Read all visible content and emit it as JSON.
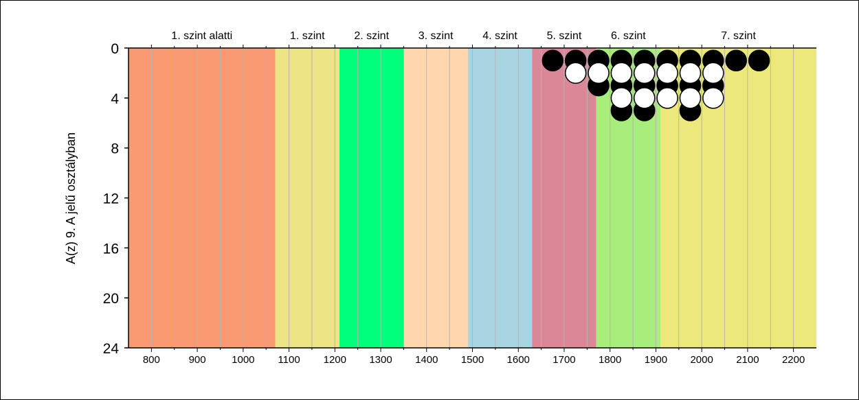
{
  "chart_data": {
    "type": "scatter",
    "ylabel": "A(z) 9. A jelű osztályban",
    "xlabel": "",
    "xlim": [
      750,
      2250
    ],
    "ylim": [
      0,
      24
    ],
    "y_inverted": true,
    "x_ticks": [
      800,
      900,
      1000,
      1100,
      1200,
      1300,
      1400,
      1500,
      1600,
      1700,
      1800,
      1900,
      2000,
      2100,
      2200
    ],
    "y_ticks": [
      0,
      4,
      8,
      12,
      16,
      20,
      24
    ],
    "x_tick_labels": [
      "800",
      "900",
      "1000",
      "1100",
      "1200",
      "1300",
      "1400",
      "1500",
      "1600",
      "1700",
      "1800",
      "1900",
      "2000",
      "2100",
      "2200"
    ],
    "y_tick_labels": [
      "0",
      "4",
      "8",
      "12",
      "16",
      "20",
      "24"
    ],
    "vertical_grid": true,
    "bands": [
      {
        "label": "1. szint alatti",
        "from": 750,
        "to": 1070,
        "color": "#fa9a72"
      },
      {
        "label": "1. szint",
        "from": 1070,
        "to": 1210,
        "color": "#ede486"
      },
      {
        "label": "2. szint",
        "from": 1210,
        "to": 1350,
        "color": "#00ff7a"
      },
      {
        "label": "3. szint",
        "from": 1350,
        "to": 1490,
        "color": "#ffd6ae"
      },
      {
        "label": "4. szint",
        "from": 1490,
        "to": 1630,
        "color": "#a9d5e2"
      },
      {
        "label": "5. szint",
        "from": 1630,
        "to": 1770,
        "color": "#da8898"
      },
      {
        "label": "6. szint",
        "from": 1770,
        "to": 1910,
        "color": "#a8ee7c"
      },
      {
        "label": "7. szint",
        "from": 1910,
        "to": 2250,
        "color": "#ede87c"
      }
    ],
    "series": [
      {
        "color": "#000000",
        "points": [
          {
            "x": 1675,
            "y": 1
          },
          {
            "x": 1725,
            "y": 1
          },
          {
            "x": 1775,
            "y": 1
          },
          {
            "x": 1825,
            "y": 1
          },
          {
            "x": 1875,
            "y": 1
          },
          {
            "x": 1925,
            "y": 1
          },
          {
            "x": 1975,
            "y": 1
          },
          {
            "x": 2025,
            "y": 1
          },
          {
            "x": 2075,
            "y": 1
          },
          {
            "x": 2125,
            "y": 1
          },
          {
            "x": 1775,
            "y": 3
          },
          {
            "x": 1825,
            "y": 3
          },
          {
            "x": 1875,
            "y": 3
          },
          {
            "x": 1925,
            "y": 3
          },
          {
            "x": 1975,
            "y": 3
          },
          {
            "x": 2025,
            "y": 3
          },
          {
            "x": 1825,
            "y": 5
          },
          {
            "x": 1875,
            "y": 5
          },
          {
            "x": 1975,
            "y": 5
          }
        ]
      },
      {
        "color": "#ffffff",
        "points": [
          {
            "x": 1725,
            "y": 2
          },
          {
            "x": 1775,
            "y": 2
          },
          {
            "x": 1825,
            "y": 2
          },
          {
            "x": 1875,
            "y": 2
          },
          {
            "x": 1925,
            "y": 2
          },
          {
            "x": 1975,
            "y": 2
          },
          {
            "x": 2025,
            "y": 2
          },
          {
            "x": 1825,
            "y": 4
          },
          {
            "x": 1875,
            "y": 4
          },
          {
            "x": 1925,
            "y": 4
          },
          {
            "x": 1975,
            "y": 4
          },
          {
            "x": 2025,
            "y": 4
          }
        ]
      }
    ]
  }
}
